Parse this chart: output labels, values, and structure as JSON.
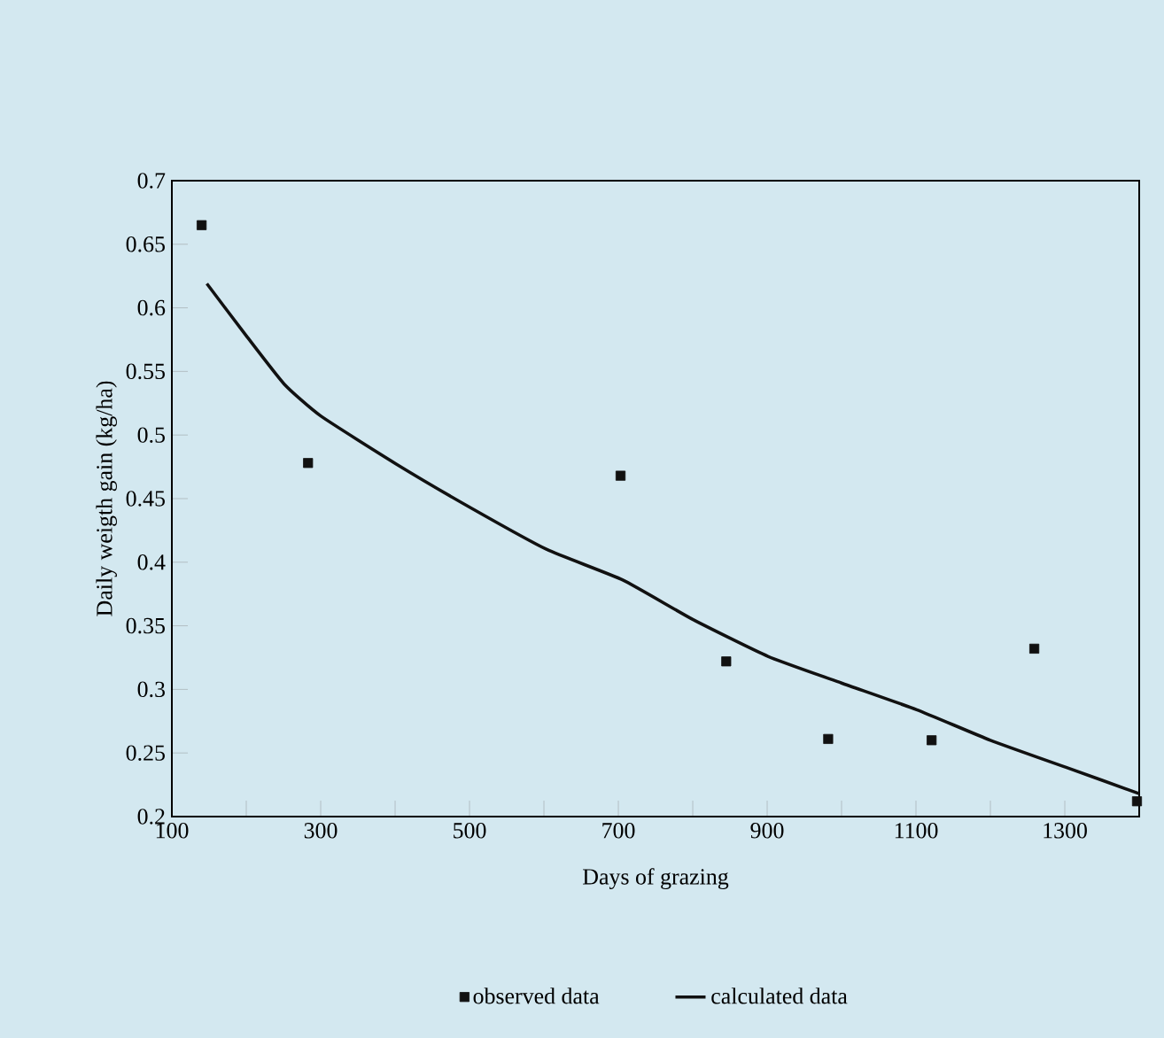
{
  "chart_data": {
    "type": "scatter",
    "xlabel": "Days of grazing",
    "ylabel": "Daily weigth gain (kg/ha)",
    "xlim": [
      100,
      1400
    ],
    "ylim": [
      0.2,
      0.7
    ],
    "xticks": [
      100,
      {
        "value": 200,
        "label": null
      },
      300,
      {
        "value": 400,
        "label": null
      },
      500,
      {
        "value": 600,
        "label": null
      },
      700,
      {
        "value": 800,
        "label": null
      },
      900,
      {
        "value": 1000,
        "label": null
      },
      1100,
      {
        "value": 1200,
        "label": null
      },
      1300
    ],
    "yticks": [
      0.2,
      0.25,
      0.3,
      0.35,
      0.4,
      0.45,
      0.5,
      0.55,
      0.6,
      0.65,
      0.7
    ],
    "grid": false,
    "legend": "bottom",
    "series": [
      {
        "name": "observed data",
        "marker": "square",
        "color": "#111111",
        "x": [
          140,
          283,
          703,
          845,
          982,
          1121,
          1259,
          1397
        ],
        "values": [
          0.665,
          0.478,
          0.468,
          0.322,
          0.261,
          0.26,
          0.332,
          0.212
        ]
      },
      {
        "name": "calculated data",
        "type": "line",
        "marker": "none",
        "line_style": "solid",
        "color": "#111111",
        "x": [
          147,
          200,
          251,
          300,
          402,
          504,
          604,
          706,
          800,
          901,
          1000,
          1101,
          1200,
          1305,
          1400
        ],
        "values": [
          0.619,
          0.578,
          0.54,
          0.515,
          0.477,
          0.442,
          0.41,
          0.386,
          0.355,
          0.326,
          0.305,
          0.284,
          0.26,
          0.238,
          0.218
        ]
      }
    ]
  }
}
